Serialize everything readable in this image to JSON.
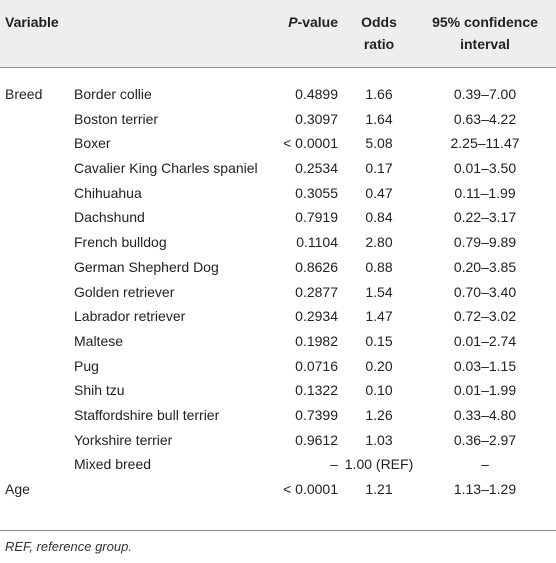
{
  "header": {
    "variable": "Variable",
    "p_italic": "P",
    "p_suffix": "-value",
    "or_line1": "Odds",
    "or_line2": "ratio",
    "ci_line1": "95% confidence",
    "ci_line2": "interval"
  },
  "rows": [
    {
      "group": "Breed",
      "name": "Border collie",
      "p": "0.4899",
      "or": "1.66",
      "ci": "0.39–7.00"
    },
    {
      "group": "",
      "name": "Boston terrier",
      "p": "0.3097",
      "or": "1.64",
      "ci": "0.63–4.22"
    },
    {
      "group": "",
      "name": "Boxer",
      "p": "< 0.0001",
      "or": "5.08",
      "ci": "2.25–11.47"
    },
    {
      "group": "",
      "name": "Cavalier King Charles spaniel",
      "p": "0.2534",
      "or": "0.17",
      "ci": "0.01–3.50"
    },
    {
      "group": "",
      "name": "Chihuahua",
      "p": "0.3055",
      "or": "0.47",
      "ci": "0.11–1.99"
    },
    {
      "group": "",
      "name": "Dachshund",
      "p": "0.7919",
      "or": "0.84",
      "ci": "0.22–3.17"
    },
    {
      "group": "",
      "name": "French bulldog",
      "p": "0.1104",
      "or": "2.80",
      "ci": "0.79–9.89"
    },
    {
      "group": "",
      "name": "German Shepherd Dog",
      "p": "0.8626",
      "or": "0.88",
      "ci": "0.20–3.85"
    },
    {
      "group": "",
      "name": "Golden retriever",
      "p": "0.2877",
      "or": "1.54",
      "ci": "0.70–3.40"
    },
    {
      "group": "",
      "name": "Labrador retriever",
      "p": "0.2934",
      "or": "1.47",
      "ci": "0.72–3.02"
    },
    {
      "group": "",
      "name": "Maltese",
      "p": "0.1982",
      "or": "0.15",
      "ci": "0.01–2.74"
    },
    {
      "group": "",
      "name": "Pug",
      "p": "0.0716",
      "or": "0.20",
      "ci": "0.03–1.15"
    },
    {
      "group": "",
      "name": "Shih tzu",
      "p": "0.1322",
      "or": "0.10",
      "ci": "0.01–1.99"
    },
    {
      "group": "",
      "name": "Staffordshire bull terrier",
      "p": "0.7399",
      "or": "1.26",
      "ci": "0.33–4.80"
    },
    {
      "group": "",
      "name": "Yorkshire terrier",
      "p": "0.9612",
      "or": "1.03",
      "ci": "0.36–2.97"
    },
    {
      "group": "",
      "name": "Mixed breed",
      "p": "–",
      "or": "1.00 (REF)",
      "ci": "–"
    },
    {
      "group": "Age",
      "name": "",
      "p": "< 0.0001",
      "or": "1.21",
      "ci": "1.13–1.29"
    }
  ],
  "footnote": "REF, reference group."
}
